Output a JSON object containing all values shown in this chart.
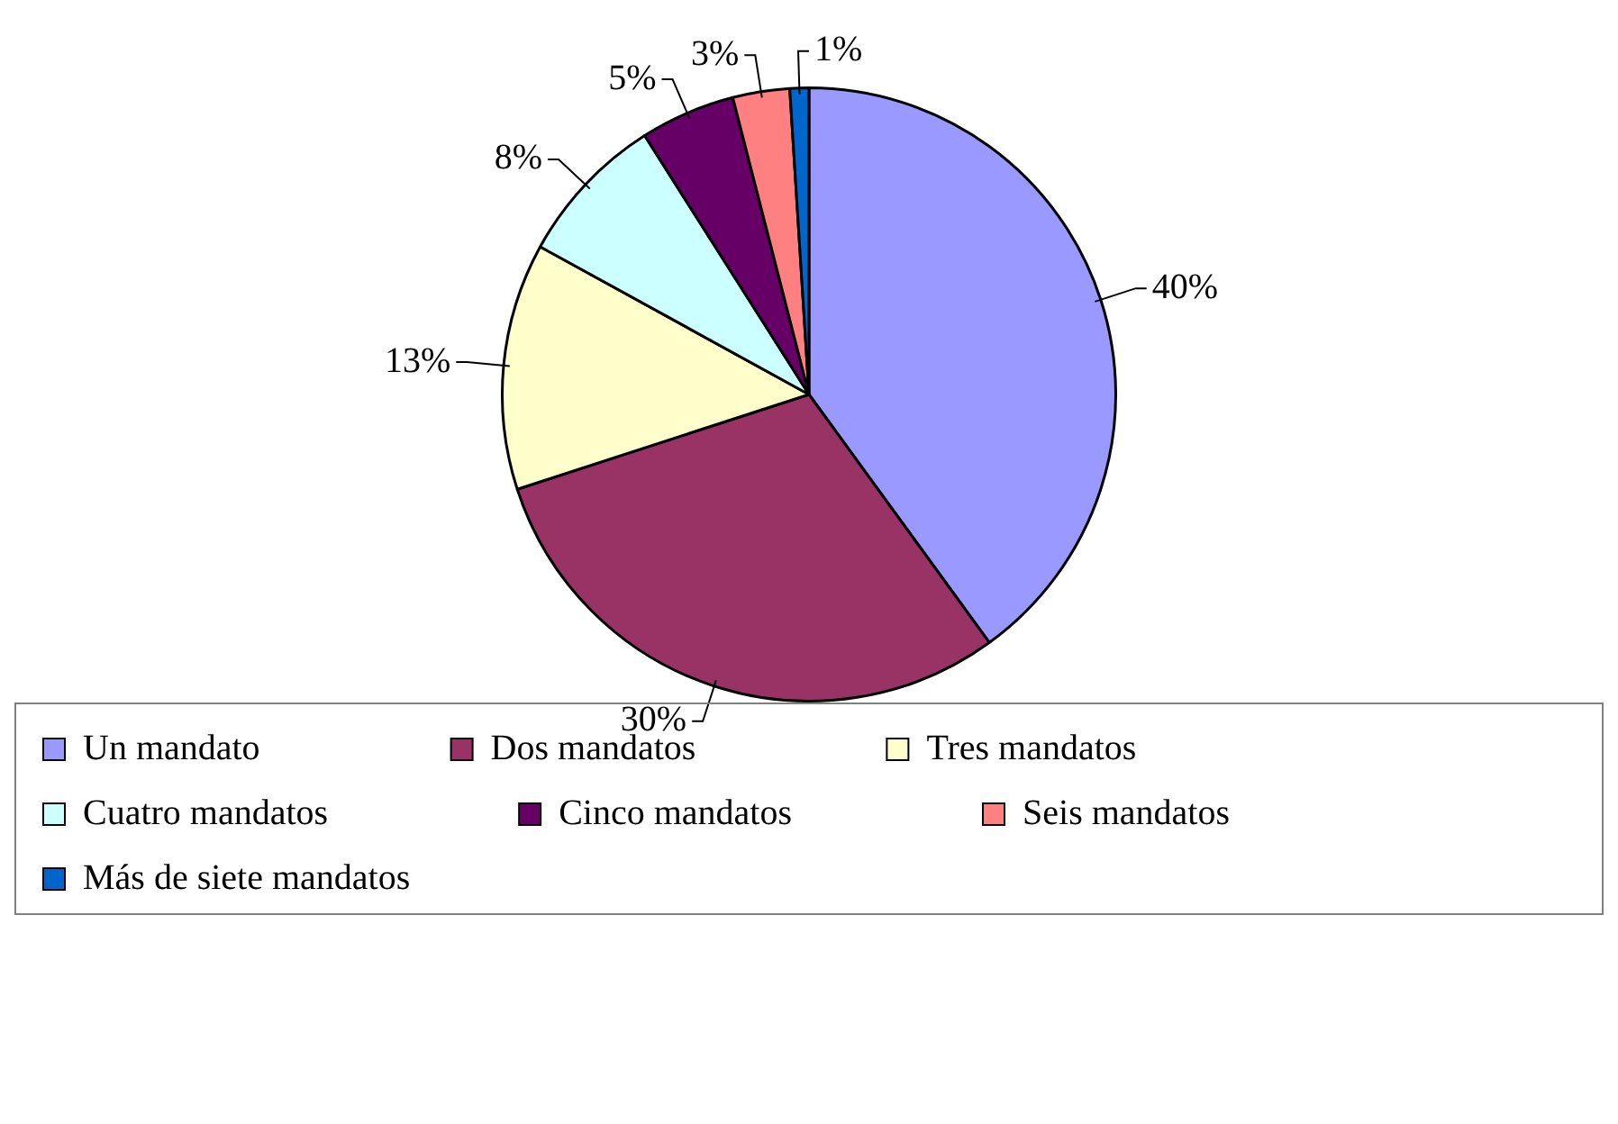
{
  "chart_data": {
    "type": "pie",
    "categories": [
      "Un mandato",
      "Dos mandatos",
      "Tres mandatos",
      "Cuatro mandatos",
      "Cinco mandatos",
      "Seis mandatos",
      "Más de siete mandatos"
    ],
    "values": [
      40,
      30,
      13,
      8,
      5,
      3,
      1
    ],
    "value_labels": [
      "40%",
      "30%",
      "13%",
      "8%",
      "5%",
      "3%",
      "1%"
    ],
    "colors": [
      "#9999ff",
      "#993366",
      "#ffffcc",
      "#ccffff",
      "#660066",
      "#ff8080",
      "#0066cc"
    ],
    "legend": "bottom"
  }
}
